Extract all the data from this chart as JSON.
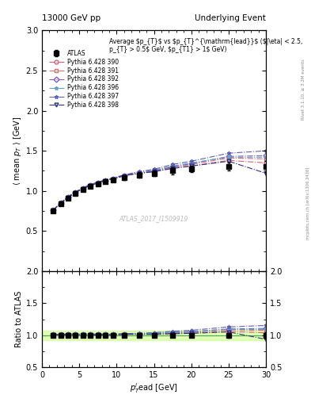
{
  "title_left": "13000 GeV pp",
  "title_right": "Underlying Event",
  "ylabel_main": "$\\langle$ mean $p_{T}$ $\\rangle$ [GeV]",
  "ylabel_ratio": "Ratio to ATLAS",
  "xlabel": "$p_{T}^{l}$ead [GeV]",
  "ylim_main": [
    0.0,
    3.0
  ],
  "ylim_ratio": [
    0.5,
    2.0
  ],
  "xlim": [
    0,
    30
  ],
  "watermark": "ATLAS_2017_I1509919",
  "rivet_label": "Rivet 3.1.10, ≥ 3.2M events",
  "arxiv_label": "mcplots.cern.ch [arXiv:1306.3436]",
  "atlas_data_x": [
    1.5,
    2.5,
    3.5,
    4.5,
    5.5,
    6.5,
    7.5,
    8.5,
    9.5,
    11.0,
    13.0,
    15.0,
    17.5,
    20.0,
    25.0,
    30.0
  ],
  "atlas_data_y": [
    0.75,
    0.84,
    0.91,
    0.97,
    1.02,
    1.06,
    1.09,
    1.12,
    1.14,
    1.17,
    1.2,
    1.22,
    1.25,
    1.27,
    1.3,
    1.3
  ],
  "atlas_data_yerr": [
    0.02,
    0.02,
    0.02,
    0.02,
    0.02,
    0.02,
    0.02,
    0.02,
    0.02,
    0.03,
    0.03,
    0.03,
    0.04,
    0.04,
    0.05,
    0.07
  ],
  "mc_x": [
    1.5,
    2.5,
    3.5,
    4.5,
    5.5,
    6.5,
    7.5,
    8.5,
    9.5,
    11.0,
    13.0,
    15.0,
    17.5,
    20.0,
    25.0,
    30.0
  ],
  "mc_390_y": [
    0.76,
    0.85,
    0.92,
    0.98,
    1.03,
    1.07,
    1.1,
    1.13,
    1.15,
    1.19,
    1.22,
    1.24,
    1.29,
    1.31,
    1.38,
    1.35
  ],
  "mc_391_y": [
    0.76,
    0.85,
    0.92,
    0.98,
    1.03,
    1.07,
    1.1,
    1.13,
    1.15,
    1.19,
    1.22,
    1.25,
    1.3,
    1.33,
    1.41,
    1.4
  ],
  "mc_392_y": [
    0.76,
    0.85,
    0.92,
    0.98,
    1.03,
    1.07,
    1.1,
    1.13,
    1.15,
    1.19,
    1.22,
    1.25,
    1.3,
    1.34,
    1.43,
    1.44
  ],
  "mc_396_y": [
    0.76,
    0.85,
    0.93,
    0.99,
    1.04,
    1.08,
    1.11,
    1.14,
    1.16,
    1.2,
    1.23,
    1.26,
    1.31,
    1.35,
    1.42,
    1.42
  ],
  "mc_397_y": [
    0.76,
    0.85,
    0.93,
    0.99,
    1.04,
    1.08,
    1.11,
    1.14,
    1.16,
    1.2,
    1.24,
    1.27,
    1.33,
    1.37,
    1.47,
    1.5
  ],
  "mc_398_y": [
    0.76,
    0.85,
    0.92,
    0.98,
    1.03,
    1.07,
    1.1,
    1.13,
    1.15,
    1.19,
    1.22,
    1.24,
    1.28,
    1.31,
    1.37,
    1.22
  ],
  "mc_styles": {
    "390": {
      "color": "#d4607a",
      "marker": "o",
      "ls": "-."
    },
    "391": {
      "color": "#d47070",
      "marker": "s",
      "ls": "-."
    },
    "392": {
      "color": "#8060c0",
      "marker": "D",
      "ls": "-."
    },
    "396": {
      "color": "#60a0c0",
      "marker": "*",
      "ls": "-."
    },
    "397": {
      "color": "#6060b0",
      "marker": "*",
      "ls": "-."
    },
    "398": {
      "color": "#303080",
      "marker": "v",
      "ls": "-."
    }
  },
  "mc_keys_order": [
    "390",
    "391",
    "392",
    "396",
    "397",
    "398"
  ],
  "background_color": "#ffffff",
  "ratio_band_color": "#ccff88",
  "ratio_band_alpha": 0.6
}
